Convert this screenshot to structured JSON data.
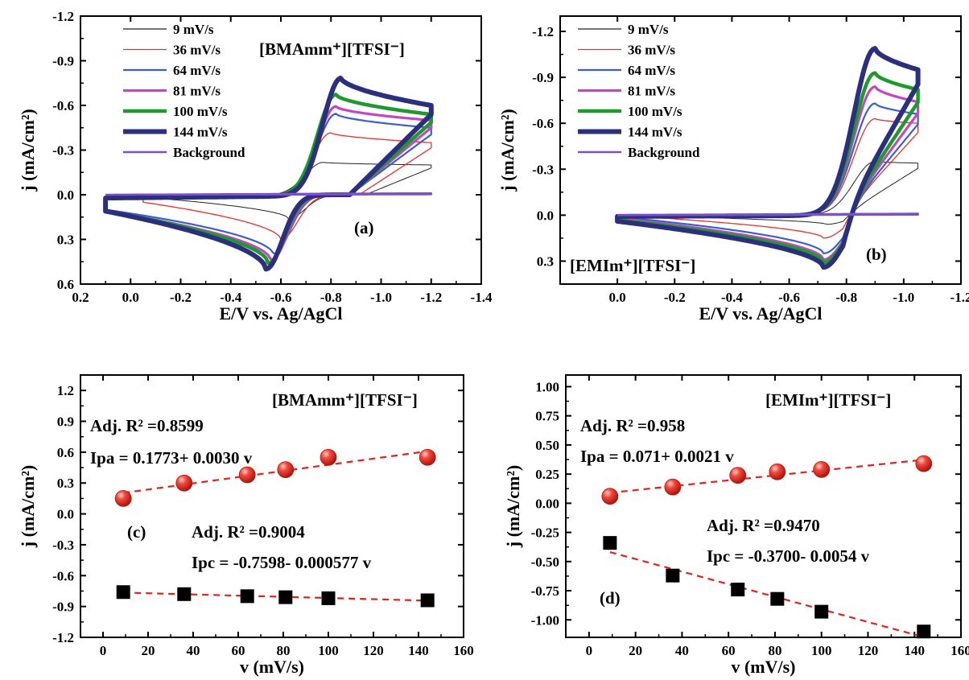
{
  "chart_data": [
    {
      "id": "a",
      "type": "line",
      "panel_label": "(a)",
      "title": "[BMAmm⁺][TFSI⁻]",
      "xlabel": "E/V vs. Ag/AgCl",
      "ylabel": "j (mA/cm²)",
      "xlim": [
        0.2,
        -1.4
      ],
      "ylim": [
        -1.2,
        0.6
      ],
      "y_inverted": true,
      "xticks": [
        0.2,
        0.0,
        -0.2,
        -0.4,
        -0.6,
        -0.8,
        -1.0,
        -1.2,
        -1.4
      ],
      "xtick_labels": [
        "0.2",
        "0.0",
        "-0.2",
        "-0.4",
        "-0.6",
        "-0.8",
        "-1.0",
        "-1.2",
        "-1.4"
      ],
      "yticks": [
        -1.2,
        -0.9,
        -0.6,
        -0.3,
        0.0,
        0.3,
        0.6
      ],
      "ytick_labels": [
        "-1.2",
        "-0.9",
        "-0.6",
        "-0.3",
        "0.0",
        "0.3",
        "0.6"
      ],
      "legend_position": "top-left",
      "series": [
        {
          "name": "9 mV/s",
          "color": "#222222",
          "width": 1,
          "E_start": -0.15,
          "E_end": -1.2,
          "Ep_ox": -0.77,
          "ip_ox": -0.22,
          "i_end": -0.2,
          "Ep_red": -0.63,
          "ip_red": 0.16,
          "i_start": 0.03
        },
        {
          "name": "36 mV/s",
          "color": "#e8302a",
          "width": 1.3,
          "E_start": -0.05,
          "E_end": -1.2,
          "Ep_ox": -0.8,
          "ip_ox": -0.42,
          "i_end": -0.35,
          "Ep_red": -0.6,
          "ip_red": 0.3,
          "i_start": 0.05
        },
        {
          "name": "64 mV/s",
          "color": "#3c5ec9",
          "width": 2.2,
          "E_start": 0.1,
          "E_end": -1.2,
          "Ep_ox": -0.82,
          "ip_ox": -0.55,
          "i_end": -0.45,
          "Ep_red": -0.57,
          "ip_red": 0.4,
          "i_start": 0.1
        },
        {
          "name": "81 mV/s",
          "color": "#c248c2",
          "width": 3.2,
          "E_start": 0.1,
          "E_end": -1.2,
          "Ep_ox": -0.82,
          "ip_ox": -0.6,
          "i_end": -0.5,
          "Ep_red": -0.56,
          "ip_red": 0.44,
          "i_start": 0.11
        },
        {
          "name": "100 mV/s",
          "color": "#1e9a2c",
          "width": 4.5,
          "E_start": 0.1,
          "E_end": -1.2,
          "Ep_ox": -0.82,
          "ip_ox": -0.68,
          "i_end": -0.54,
          "Ep_red": -0.55,
          "ip_red": 0.46,
          "i_start": 0.11
        },
        {
          "name": "144 mV/s",
          "color": "#2b2f7c",
          "width": 6,
          "E_start": 0.1,
          "E_end": -1.2,
          "Ep_ox": -0.84,
          "ip_ox": -0.79,
          "i_end": -0.6,
          "Ep_red": -0.54,
          "ip_red": 0.5,
          "i_start": 0.11
        },
        {
          "name": "Background",
          "color": "#7a52c8",
          "width": 2.5,
          "background": true,
          "E_start": 0.1,
          "E_end": -1.2,
          "i_end": -0.01
        }
      ]
    },
    {
      "id": "b",
      "type": "line",
      "panel_label": "(b)",
      "title": "[EMIm⁺][TFSI⁻]",
      "xlabel": "E/V vs. Ag/AgCl",
      "ylabel": "j (mA/cm²)",
      "xlim": [
        0.2,
        -1.2
      ],
      "ylim": [
        -1.3,
        0.45
      ],
      "y_inverted": true,
      "xticks": [
        0.0,
        -0.2,
        -0.4,
        -0.6,
        -0.8,
        -1.0,
        -1.2
      ],
      "xtick_labels": [
        "0.0",
        "-0.2",
        "-0.4",
        "-0.6",
        "-0.8",
        "-1.0",
        "-1.2"
      ],
      "yticks": [
        -1.2,
        -0.9,
        -0.6,
        -0.3,
        0.0,
        0.3
      ],
      "ytick_labels": [
        "-1.2",
        "-0.9",
        "-0.6",
        "-0.3",
        "0.0",
        "0.3"
      ],
      "legend_position": "top-left",
      "series": [
        {
          "name": "9 mV/s",
          "color": "#222222",
          "width": 1,
          "E_start": 0.0,
          "E_end": -1.05,
          "Ep_ox": -0.9,
          "ip_ox": -0.35,
          "i_end": -0.34,
          "Ep_red": -0.73,
          "ip_red": 0.06,
          "i_start": 0.0
        },
        {
          "name": "36 mV/s",
          "color": "#e8302a",
          "width": 1.3,
          "E_start": 0.0,
          "E_end": -1.05,
          "Ep_ox": -0.9,
          "ip_ox": -0.63,
          "i_end": -0.6,
          "Ep_red": -0.72,
          "ip_red": 0.15,
          "i_start": 0.0
        },
        {
          "name": "64 mV/s",
          "color": "#3c5ec9",
          "width": 2.2,
          "E_start": 0.0,
          "E_end": -1.05,
          "Ep_ox": -0.9,
          "ip_ox": -0.73,
          "i_end": -0.66,
          "Ep_red": -0.72,
          "ip_red": 0.25,
          "i_start": 0.01
        },
        {
          "name": "81 mV/s",
          "color": "#c248c2",
          "width": 3.2,
          "E_start": 0.0,
          "E_end": -1.05,
          "Ep_ox": -0.9,
          "ip_ox": -0.84,
          "i_end": -0.74,
          "Ep_red": -0.72,
          "ip_red": 0.29,
          "i_start": 0.02
        },
        {
          "name": "100 mV/s",
          "color": "#1e9a2c",
          "width": 4.5,
          "E_start": 0.0,
          "E_end": -1.05,
          "Ep_ox": -0.9,
          "ip_ox": -0.93,
          "i_end": -0.82,
          "Ep_red": -0.72,
          "ip_red": 0.31,
          "i_start": 0.03
        },
        {
          "name": "144 mV/s",
          "color": "#2b2f7c",
          "width": 6,
          "E_start": 0.0,
          "E_end": -1.05,
          "Ep_ox": -0.9,
          "ip_ox": -1.09,
          "i_end": -0.95,
          "Ep_red": -0.72,
          "ip_red": 0.34,
          "i_start": 0.04
        },
        {
          "name": "Background",
          "color": "#7a52c8",
          "width": 2.5,
          "background": true,
          "E_start": 0.0,
          "E_end": -1.05,
          "i_end": -0.01
        }
      ]
    },
    {
      "id": "c",
      "type": "scatter",
      "panel_label": "(c)",
      "title": "[BMAmm⁺][TFSI⁻]",
      "xlabel": "v (mV/s)",
      "ylabel": "j (mA/cm²)",
      "xlim": [
        -10,
        160
      ],
      "ylim": [
        -1.2,
        1.35
      ],
      "xticks": [
        0,
        20,
        40,
        60,
        80,
        100,
        120,
        140,
        160
      ],
      "xtick_labels": [
        "0",
        "20",
        "40",
        "60",
        "80",
        "100",
        "120",
        "140",
        "160"
      ],
      "yticks": [
        -1.2,
        -0.9,
        -0.6,
        -0.3,
        0.0,
        0.3,
        0.6,
        0.9,
        1.2
      ],
      "ytick_labels": [
        "-1.2",
        "-0.9",
        "-0.6",
        "-0.3",
        "0.0",
        "0.3",
        "0.6",
        "0.9",
        "1.2"
      ],
      "annotations": [
        {
          "text": "Adj. R² =0.8599"
        },
        {
          "text": "Ipa = 0.1773+ 0.0030 v"
        },
        {
          "text": "Adj. R² =0.9004"
        },
        {
          "text": "Ipc = -0.7598- 0.000577 v"
        }
      ],
      "series": [
        {
          "name": "Ipa",
          "marker": "circle",
          "color": "#e32119",
          "x": [
            9,
            36,
            64,
            81,
            100,
            144
          ],
          "y": [
            0.15,
            0.3,
            0.38,
            0.43,
            0.55,
            0.55
          ],
          "fit": {
            "intercept": 0.1773,
            "slope": 0.003
          }
        },
        {
          "name": "Ipc",
          "marker": "square",
          "color": "#000000",
          "x": [
            9,
            36,
            64,
            81,
            100,
            144
          ],
          "y": [
            -0.76,
            -0.78,
            -0.8,
            -0.81,
            -0.82,
            -0.84
          ],
          "fit": {
            "intercept": -0.7598,
            "slope": -0.000577
          }
        }
      ]
    },
    {
      "id": "d",
      "type": "scatter",
      "panel_label": "(d)",
      "title": "[EMIm⁺][TFSI⁻]",
      "xlabel": "v (mV/s)",
      "ylabel": "j (mA/cm²)",
      "xlim": [
        -10,
        160
      ],
      "ylim": [
        -1.15,
        1.1
      ],
      "xticks": [
        0,
        20,
        40,
        60,
        80,
        100,
        120,
        140,
        160
      ],
      "xtick_labels": [
        "0",
        "20",
        "40",
        "60",
        "80",
        "100",
        "120",
        "140",
        "160"
      ],
      "yticks": [
        -1.0,
        -0.75,
        -0.5,
        -0.25,
        0.0,
        0.25,
        0.5,
        0.75,
        1.0
      ],
      "ytick_labels": [
        "-1.00",
        "-0.75",
        "-0.50",
        "-0.25",
        "0.00",
        "0.25",
        "0.50",
        "0.75",
        "1.00"
      ],
      "annotations": [
        {
          "text": "Adj. R² =0.958"
        },
        {
          "text": "Ipa = 0.071+ 0.0021 v"
        },
        {
          "text": "Adj. R² =0.9470"
        },
        {
          "text": "Ipc = -0.3700- 0.0054 v"
        }
      ],
      "series": [
        {
          "name": "Ipa",
          "marker": "circle",
          "color": "#e32119",
          "x": [
            9,
            36,
            64,
            81,
            100,
            144
          ],
          "y": [
            0.06,
            0.14,
            0.24,
            0.27,
            0.29,
            0.34
          ],
          "fit": {
            "intercept": 0.071,
            "slope": 0.0021
          }
        },
        {
          "name": "Ipc",
          "marker": "square",
          "color": "#000000",
          "x": [
            9,
            36,
            64,
            81,
            100,
            144
          ],
          "y": [
            -0.34,
            -0.62,
            -0.74,
            -0.82,
            -0.93,
            -1.1
          ],
          "fit": {
            "intercept": -0.37,
            "slope": -0.0054
          }
        }
      ]
    }
  ]
}
